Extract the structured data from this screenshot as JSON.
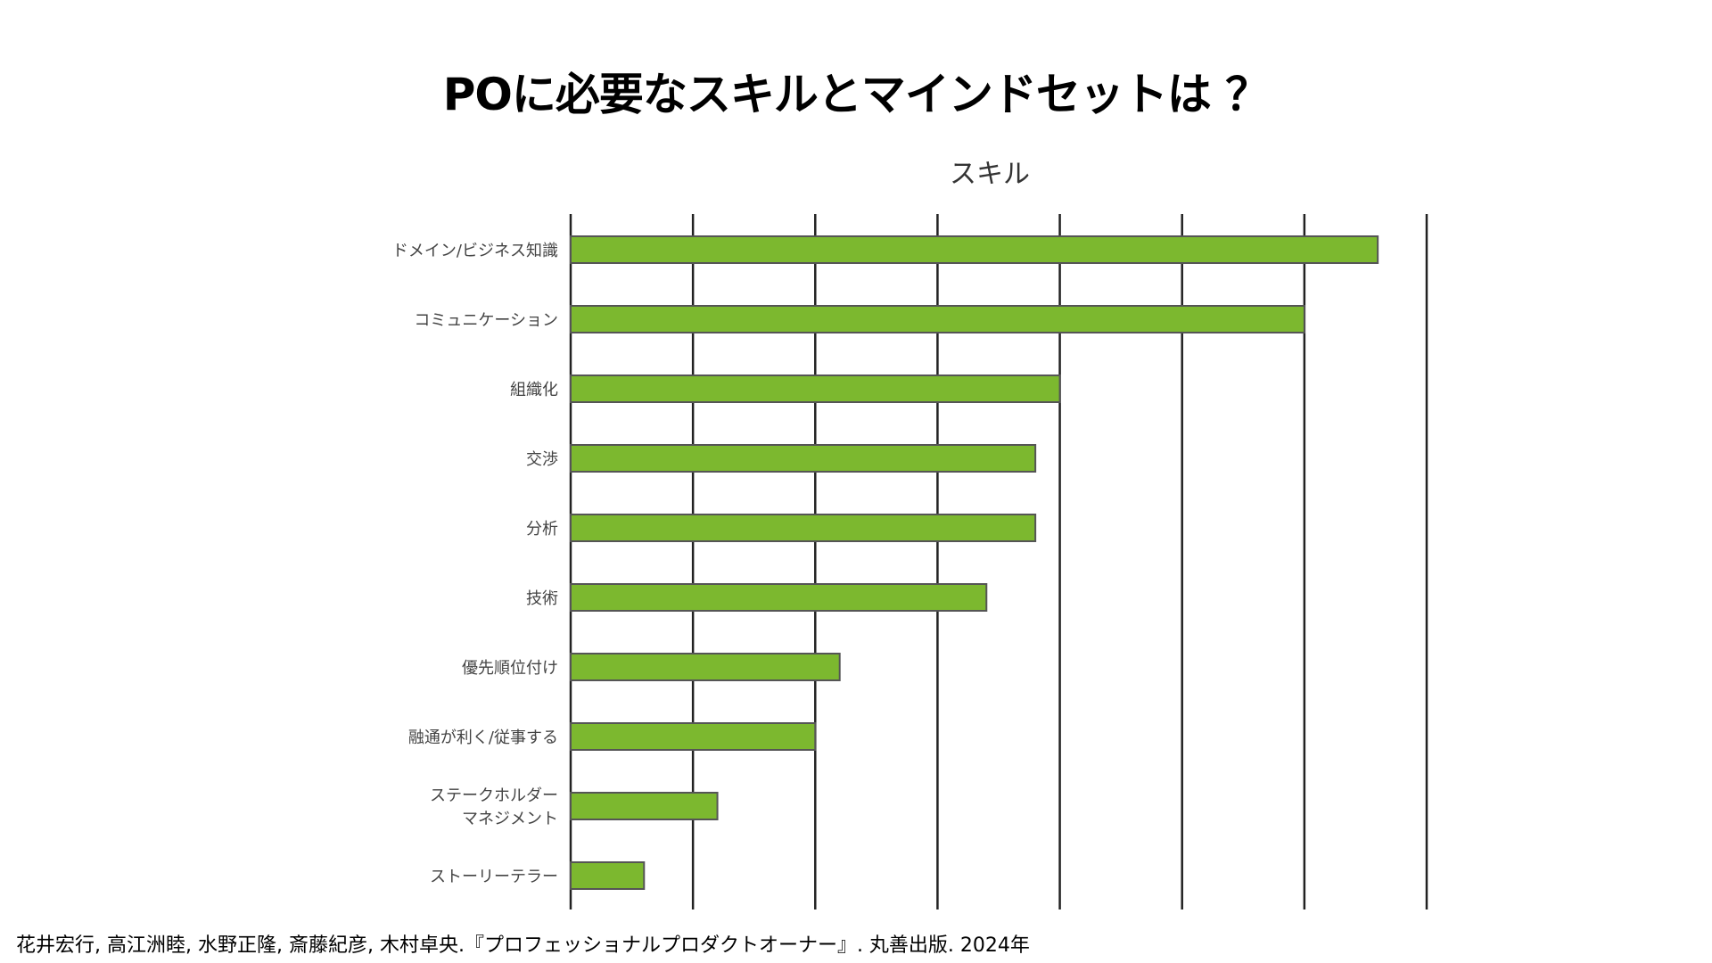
{
  "page": {
    "title": "POに必要なスキルとマインドセットは ？",
    "citation": "花井宏行, 高江洲睦, 水野正隆, 斎藤紀彦, 木村卓央.『プロフェッショナルプロダクトオーナー』. 丸善出版. 2024年"
  },
  "chart_data": {
    "type": "bar",
    "orientation": "horizontal",
    "title": "スキル",
    "xlabel": "",
    "ylabel": "",
    "xlim": [
      0,
      7
    ],
    "grid": true,
    "tick_labels_shown": false,
    "categories": [
      [
        "ドメイン/ビジネス知識"
      ],
      [
        "コミュニケーション"
      ],
      [
        "組織化"
      ],
      [
        "交渉"
      ],
      [
        "分析"
      ],
      [
        "技術"
      ],
      [
        "優先順位付け"
      ],
      [
        "融通が利く/従事する"
      ],
      [
        "ステークホルダー",
        "マネジメント"
      ],
      [
        "ストーリーテラー"
      ]
    ],
    "values": [
      6.6,
      6.0,
      4.0,
      3.8,
      3.8,
      3.4,
      2.2,
      2.0,
      1.2,
      0.6
    ],
    "colors": {
      "bar_fill": "#7cb82f",
      "bar_stroke": "#555555",
      "grid": "#222222"
    }
  }
}
